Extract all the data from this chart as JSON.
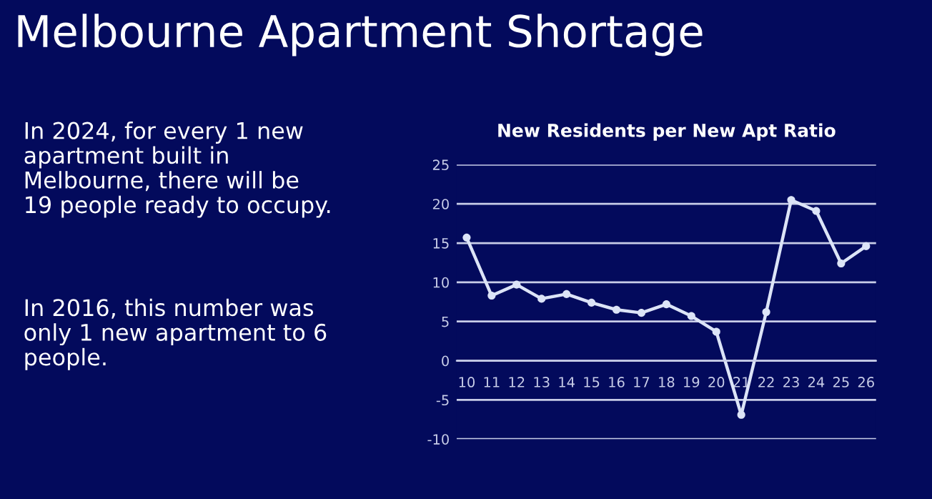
{
  "chart_data": {
    "type": "line",
    "title": "Melbourne Apartment Shortage",
    "subtitle": "New Residents per New Apt Ratio",
    "annotations": [
      "In 2024, for every 1 new\napartment built in\nMelbourne, there will be\n19 people ready to occupy.",
      "In 2016, this number was\nonly 1 new apartment to 6\npeople."
    ],
    "categories": [
      "10",
      "11",
      "12",
      "13",
      "14",
      "15",
      "16",
      "17",
      "18",
      "19",
      "20",
      "21",
      "22",
      "23",
      "24",
      "25",
      "26"
    ],
    "series": [
      {
        "color": "#dce4f7",
        "values": [
          15.7,
          8.3,
          9.7,
          7.9,
          8.5,
          7.4,
          6.5,
          6.1,
          7.2,
          5.7,
          3.7,
          -6.9,
          6.2,
          20.5,
          19.1,
          12.4,
          14.6
        ]
      }
    ],
    "ylim": [
      -10,
      25
    ],
    "yticks": [
      -10,
      -5,
      0,
      5,
      10,
      15,
      20,
      25
    ],
    "grid": "y",
    "marker": "circle",
    "line_style": "solid",
    "legend": false
  }
}
